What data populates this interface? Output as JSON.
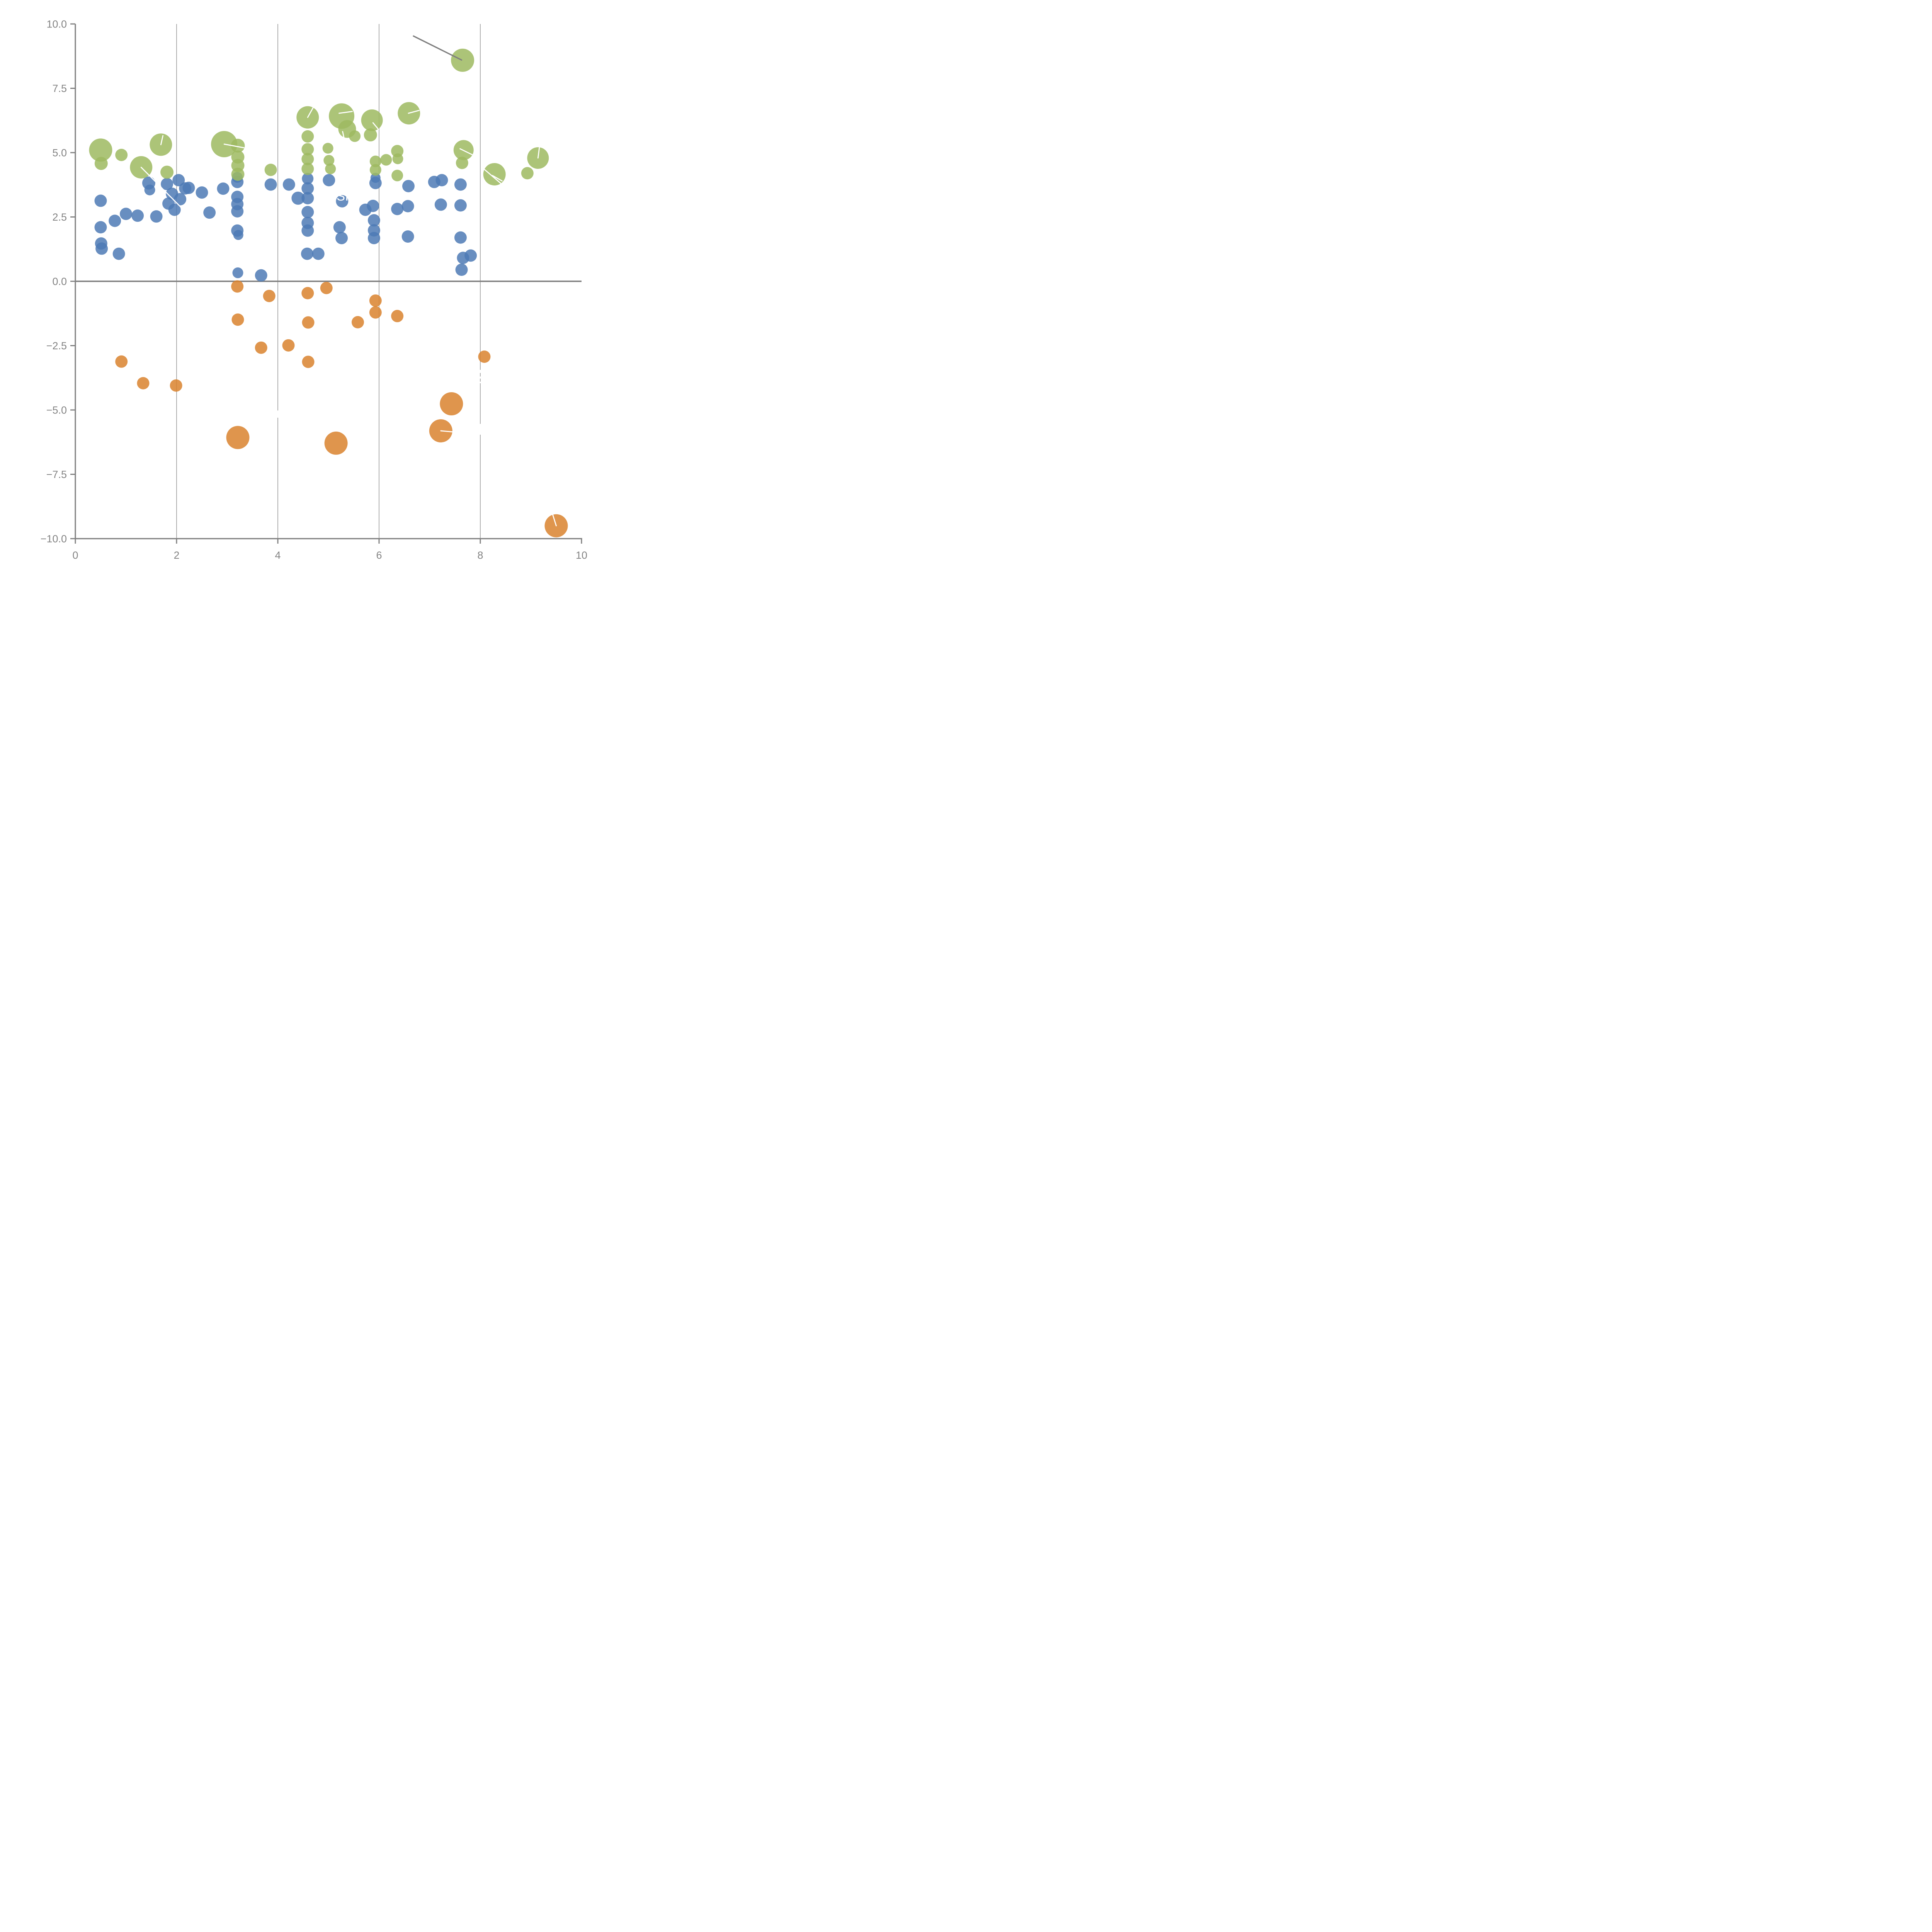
{
  "chart_data": {
    "type": "scatter",
    "title": "",
    "xlabel": "",
    "ylabel": "",
    "xlim": [
      0,
      10
    ],
    "ylim": [
      -10,
      10
    ],
    "grid": "vertical-only",
    "grid_x": [
      2,
      4,
      6,
      8
    ],
    "x_ticks": [
      {
        "v": 0,
        "label": "0"
      },
      {
        "v": 2,
        "label": "2"
      },
      {
        "v": 4,
        "label": "4"
      },
      {
        "v": 6,
        "label": "6"
      },
      {
        "v": 8,
        "label": "8"
      },
      {
        "v": 10,
        "label": "10"
      }
    ],
    "y_ticks": [
      {
        "v": 10,
        "label": "10.0"
      },
      {
        "v": 7.5,
        "label": "7.5"
      },
      {
        "v": 5,
        "label": "5.0"
      },
      {
        "v": 2.5,
        "label": "2.5"
      },
      {
        "v": 0,
        "label": "0.0"
      },
      {
        "v": -2.5,
        "label": "−2.5"
      },
      {
        "v": -5,
        "label": "−5.0"
      },
      {
        "v": -7.5,
        "label": "−7.5"
      },
      {
        "v": -10,
        "label": "−10.0"
      }
    ],
    "colors": {
      "green": "#9dba60",
      "blue": "#4e7ab5",
      "orange": "#d9822e",
      "axis": "#808080",
      "gridline": "#6d6d6d",
      "zero_line": "#818181",
      "annotation_line": "#7f7f7f",
      "tick_label": "#848484",
      "white_marks": "#ffffff"
    },
    "point_opacity": 0.85,
    "series": [
      {
        "name": "blue",
        "color": "#4e7ab5",
        "default_r": 16,
        "points": [
          {
            "x": 0.5,
            "y": 3.13
          },
          {
            "x": 0.5,
            "y": 2.1
          },
          {
            "x": 0.51,
            "y": 1.47
          },
          {
            "x": 0.52,
            "y": 1.27
          },
          {
            "x": 0.78,
            "y": 2.35
          },
          {
            "x": 0.86,
            "y": 1.07
          },
          {
            "x": 1.0,
            "y": 2.62
          },
          {
            "x": 1.23,
            "y": 2.55
          },
          {
            "x": 1.45,
            "y": 3.82,
            "r": 17
          },
          {
            "x": 1.47,
            "y": 3.55,
            "r": 14
          },
          {
            "x": 1.6,
            "y": 2.52
          },
          {
            "x": 1.81,
            "y": 3.78
          },
          {
            "x": 2.04,
            "y": 3.93
          },
          {
            "x": 2.17,
            "y": 3.61
          },
          {
            "x": 1.91,
            "y": 3.4
          },
          {
            "x": 2.07,
            "y": 3.19
          },
          {
            "x": 1.84,
            "y": 3.02
          },
          {
            "x": 1.96,
            "y": 2.78
          },
          {
            "x": 2.24,
            "y": 3.63
          },
          {
            "x": 2.5,
            "y": 3.45
          },
          {
            "x": 2.65,
            "y": 2.67
          },
          {
            "x": 2.92,
            "y": 3.6
          },
          {
            "x": 3.2,
            "y": 4.04,
            "r": 14
          },
          {
            "x": 3.2,
            "y": 3.86
          },
          {
            "x": 3.2,
            "y": 3.28
          },
          {
            "x": 3.2,
            "y": 3.0
          },
          {
            "x": 3.2,
            "y": 2.72
          },
          {
            "x": 3.2,
            "y": 1.97
          },
          {
            "x": 3.22,
            "y": 1.8,
            "r": 13
          },
          {
            "x": 3.21,
            "y": 0.33,
            "r": 14
          },
          {
            "x": 3.67,
            "y": 0.23
          },
          {
            "x": 3.86,
            "y": 3.76
          },
          {
            "x": 4.22,
            "y": 3.76
          },
          {
            "x": 4.4,
            "y": 3.23,
            "r": 17
          },
          {
            "x": 4.59,
            "y": 3.99,
            "r": 15
          },
          {
            "x": 4.59,
            "y": 3.61
          },
          {
            "x": 4.59,
            "y": 3.23
          },
          {
            "x": 4.59,
            "y": 2.69
          },
          {
            "x": 4.59,
            "y": 2.27
          },
          {
            "x": 4.59,
            "y": 1.97
          },
          {
            "x": 4.58,
            "y": 1.07
          },
          {
            "x": 4.8,
            "y": 1.07
          },
          {
            "x": 5.01,
            "y": 3.93
          },
          {
            "x": 5.27,
            "y": 3.11
          },
          {
            "x": 5.22,
            "y": 2.1
          },
          {
            "x": 5.26,
            "y": 1.68
          },
          {
            "x": 5.73,
            "y": 2.78
          },
          {
            "x": 5.88,
            "y": 2.93
          },
          {
            "x": 5.9,
            "y": 2.37
          },
          {
            "x": 5.9,
            "y": 1.98
          },
          {
            "x": 5.9,
            "y": 1.68
          },
          {
            "x": 5.93,
            "y": 4.02,
            "r": 13
          },
          {
            "x": 5.93,
            "y": 3.82
          },
          {
            "x": 6.36,
            "y": 2.81
          },
          {
            "x": 6.57,
            "y": 2.92
          },
          {
            "x": 6.58,
            "y": 3.7
          },
          {
            "x": 6.57,
            "y": 1.74
          },
          {
            "x": 7.09,
            "y": 3.86
          },
          {
            "x": 7.24,
            "y": 3.93
          },
          {
            "x": 7.22,
            "y": 2.98
          },
          {
            "x": 7.61,
            "y": 3.76
          },
          {
            "x": 7.61,
            "y": 2.95
          },
          {
            "x": 7.61,
            "y": 1.7
          },
          {
            "x": 7.66,
            "y": 0.91
          },
          {
            "x": 7.81,
            "y": 1.0
          },
          {
            "x": 7.63,
            "y": 0.45
          }
        ]
      },
      {
        "name": "orange",
        "color": "#d9822e",
        "default_r": 16,
        "points": [
          {
            "x": 0.91,
            "y": -3.12
          },
          {
            "x": 1.34,
            "y": -3.96
          },
          {
            "x": 1.99,
            "y": -4.05
          },
          {
            "x": 3.2,
            "y": -0.2
          },
          {
            "x": 3.21,
            "y": -1.49
          },
          {
            "x": 3.21,
            "y": -6.07,
            "r": 30
          },
          {
            "x": 3.67,
            "y": -2.58
          },
          {
            "x": 3.83,
            "y": -0.57
          },
          {
            "x": 4.21,
            "y": -2.49
          },
          {
            "x": 4.59,
            "y": -0.46
          },
          {
            "x": 4.6,
            "y": -1.6
          },
          {
            "x": 4.6,
            "y": -3.13
          },
          {
            "x": 4.96,
            "y": -0.26
          },
          {
            "x": 5.15,
            "y": -6.29,
            "r": 30
          },
          {
            "x": 5.58,
            "y": -1.59
          },
          {
            "x": 5.93,
            "y": -0.75
          },
          {
            "x": 5.93,
            "y": -1.21
          },
          {
            "x": 6.36,
            "y": -1.35
          },
          {
            "x": 7.22,
            "y": -5.81,
            "r": 30
          },
          {
            "x": 7.43,
            "y": -4.76,
            "r": 30
          },
          {
            "x": 8.08,
            "y": -2.93
          },
          {
            "x": 9.5,
            "y": -9.5,
            "r": 30
          }
        ]
      },
      {
        "name": "green",
        "color": "#9dba60",
        "default_r": 16,
        "points": [
          {
            "x": 0.5,
            "y": 5.1,
            "r": 30
          },
          {
            "x": 0.51,
            "y": 4.58,
            "r": 17
          },
          {
            "x": 0.91,
            "y": 4.91
          },
          {
            "x": 1.3,
            "y": 4.43,
            "r": 29
          },
          {
            "x": 1.69,
            "y": 5.31,
            "r": 29
          },
          {
            "x": 1.81,
            "y": 4.24,
            "r": 17
          },
          {
            "x": 2.94,
            "y": 5.33,
            "r": 34
          },
          {
            "x": 3.21,
            "y": 5.27,
            "r": 18
          },
          {
            "x": 3.21,
            "y": 4.83,
            "r": 17
          },
          {
            "x": 3.21,
            "y": 4.5,
            "r": 17
          },
          {
            "x": 3.21,
            "y": 4.16,
            "r": 17
          },
          {
            "x": 3.86,
            "y": 4.33
          },
          {
            "x": 4.59,
            "y": 6.37,
            "r": 29
          },
          {
            "x": 4.59,
            "y": 5.63
          },
          {
            "x": 4.59,
            "y": 5.13
          },
          {
            "x": 4.59,
            "y": 4.75
          },
          {
            "x": 4.59,
            "y": 4.37
          },
          {
            "x": 4.99,
            "y": 5.17,
            "r": 14
          },
          {
            "x": 5.01,
            "y": 4.7,
            "r": 14
          },
          {
            "x": 5.04,
            "y": 4.37,
            "r": 14
          },
          {
            "x": 5.26,
            "y": 6.42,
            "r": 33
          },
          {
            "x": 5.37,
            "y": 5.92,
            "r": 23
          },
          {
            "x": 5.52,
            "y": 5.64,
            "r": 15
          },
          {
            "x": 5.83,
            "y": 5.69,
            "r": 17
          },
          {
            "x": 5.86,
            "y": 6.26,
            "r": 28
          },
          {
            "x": 5.93,
            "y": 4.66,
            "r": 15
          },
          {
            "x": 5.93,
            "y": 4.33,
            "r": 15
          },
          {
            "x": 6.14,
            "y": 4.72,
            "r": 15
          },
          {
            "x": 6.36,
            "y": 5.06
          },
          {
            "x": 6.37,
            "y": 4.76,
            "r": 14
          },
          {
            "x": 6.36,
            "y": 4.11,
            "r": 15
          },
          {
            "x": 6.59,
            "y": 6.53,
            "r": 29
          },
          {
            "x": 7.65,
            "y": 8.59,
            "r": 30
          },
          {
            "x": 7.67,
            "y": 5.1,
            "r": 26
          },
          {
            "x": 7.64,
            "y": 4.6
          },
          {
            "x": 8.28,
            "y": 4.16,
            "r": 29
          },
          {
            "x": 8.93,
            "y": 4.2
          },
          {
            "x": 9.14,
            "y": 4.79,
            "r": 28
          }
        ]
      }
    ],
    "annotations": {
      "gray_leader_line": {
        "x1": 6.68,
        "y1": 9.53,
        "x2": 7.63,
        "y2": 8.6
      },
      "white_label": {
        "text": "SI",
        "x": 5.16,
        "y": 3.14,
        "font_px": 33
      },
      "white_leader_lines": [
        {
          "x1": 1.3,
          "y1": 4.43,
          "x2": 2.11,
          "y2": 2.83
        },
        {
          "x1": 1.69,
          "y1": 5.31,
          "x2": 1.73,
          "y2": 5.66
        },
        {
          "x1": 2.94,
          "y1": 5.33,
          "x2": 3.33,
          "y2": 5.19
        },
        {
          "x1": 4.59,
          "y1": 6.37,
          "x2": 4.7,
          "y2": 6.76
        },
        {
          "x1": 5.21,
          "y1": 6.53,
          "x2": 5.47,
          "y2": 6.6
        },
        {
          "x1": 5.28,
          "y1": 5.82,
          "x2": 5.32,
          "y2": 5.46
        },
        {
          "x1": 5.88,
          "y1": 6.16,
          "x2": 5.99,
          "y2": 5.9
        },
        {
          "x1": 6.58,
          "y1": 6.53,
          "x2": 6.79,
          "y2": 6.64
        },
        {
          "x1": 9.14,
          "y1": 4.79,
          "x2": 9.17,
          "y2": 5.24
        },
        {
          "x1": 8.08,
          "y1": 4.35,
          "x2": 8.42,
          "y2": 3.78
        },
        {
          "x1": 8.24,
          "y1": 4.11,
          "x2": 8.43,
          "y2": 3.9
        },
        {
          "x1": 7.6,
          "y1": 5.15,
          "x2": 7.86,
          "y2": 4.9
        },
        {
          "x1": 7.22,
          "y1": -5.81,
          "x2": 7.45,
          "y2": -5.85
        },
        {
          "x1": 9.43,
          "y1": -9.06,
          "x2": 9.5,
          "y2": -9.5
        }
      ],
      "gridline_gaps": [
        {
          "x": 2,
          "y1": 1.39,
          "y2": 1.56
        },
        {
          "x": 4,
          "y1": 4.95,
          "y2": 5.36
        },
        {
          "x": 4,
          "y1": -5.02,
          "y2": -5.3
        },
        {
          "x": 6,
          "y1": 4.97,
          "y2": 5.31
        },
        {
          "x": 8,
          "y1": 4.49,
          "y2": 4.63
        },
        {
          "x": 8,
          "y1": -3.44,
          "y2": -3.96
        },
        {
          "x": 8,
          "y1": -5.54,
          "y2": -5.96
        }
      ],
      "gridline_gap_dashes": [
        {
          "x": 8,
          "y1": -3.56,
          "y2": -3.7
        },
        {
          "x": 8,
          "y1": -3.78,
          "y2": -3.9
        }
      ]
    }
  }
}
